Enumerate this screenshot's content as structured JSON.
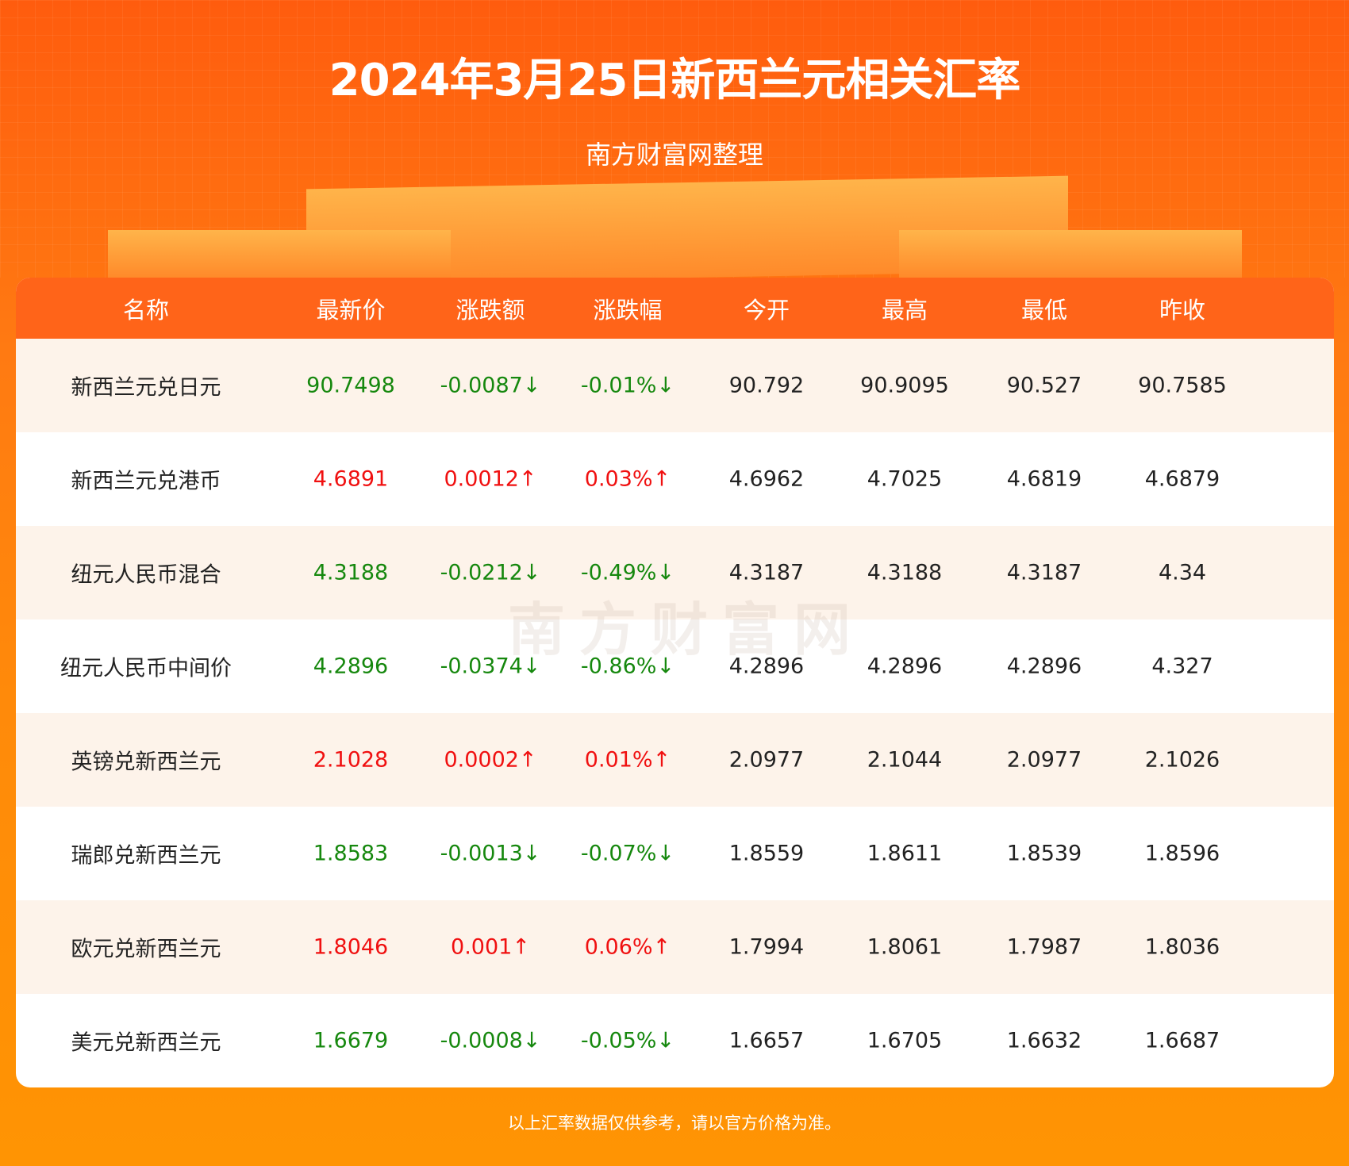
{
  "header": {
    "title": "2024年3月25日新西兰元相关汇率",
    "subtitle": "南方财富网整理"
  },
  "table": {
    "columns": [
      "名称",
      "最新价",
      "涨跌额",
      "涨跌幅",
      "今开",
      "最高",
      "最低",
      "昨收"
    ],
    "rows": [
      {
        "name": "新西兰元兑日元",
        "latest": "90.7498",
        "change": "-0.0087↓",
        "pct": "-0.01%↓",
        "open": "90.792",
        "high": "90.9095",
        "low": "90.527",
        "prev": "90.7585",
        "dir": "down"
      },
      {
        "name": "新西兰元兑港币",
        "latest": "4.6891",
        "change": "0.0012↑",
        "pct": "0.03%↑",
        "open": "4.6962",
        "high": "4.7025",
        "low": "4.6819",
        "prev": "4.6879",
        "dir": "up"
      },
      {
        "name": "纽元人民币混合",
        "latest": "4.3188",
        "change": "-0.0212↓",
        "pct": "-0.49%↓",
        "open": "4.3187",
        "high": "4.3188",
        "low": "4.3187",
        "prev": "4.34",
        "dir": "down"
      },
      {
        "name": "纽元人民币中间价",
        "latest": "4.2896",
        "change": "-0.0374↓",
        "pct": "-0.86%↓",
        "open": "4.2896",
        "high": "4.2896",
        "low": "4.2896",
        "prev": "4.327",
        "dir": "down"
      },
      {
        "name": "英镑兑新西兰元",
        "latest": "2.1028",
        "change": "0.0002↑",
        "pct": "0.01%↑",
        "open": "2.0977",
        "high": "2.1044",
        "low": "2.0977",
        "prev": "2.1026",
        "dir": "up"
      },
      {
        "name": "瑞郎兑新西兰元",
        "latest": "1.8583",
        "change": "-0.0013↓",
        "pct": "-0.07%↓",
        "open": "1.8559",
        "high": "1.8611",
        "low": "1.8539",
        "prev": "1.8596",
        "dir": "down"
      },
      {
        "name": "欧元兑新西兰元",
        "latest": "1.8046",
        "change": "0.001↑",
        "pct": "0.06%↑",
        "open": "1.7994",
        "high": "1.8061",
        "low": "1.7987",
        "prev": "1.8036",
        "dir": "up"
      },
      {
        "name": "美元兑新西兰元",
        "latest": "1.6679",
        "change": "-0.0008↓",
        "pct": "-0.05%↓",
        "open": "1.6657",
        "high": "1.6705",
        "low": "1.6632",
        "prev": "1.6687",
        "dir": "down"
      }
    ]
  },
  "watermark": "南方财富网",
  "footer": "以上汇率数据仅供参考，请以官方价格为准。",
  "colors": {
    "up": "#f01010",
    "down": "#16880e",
    "header": "#ff6419"
  }
}
